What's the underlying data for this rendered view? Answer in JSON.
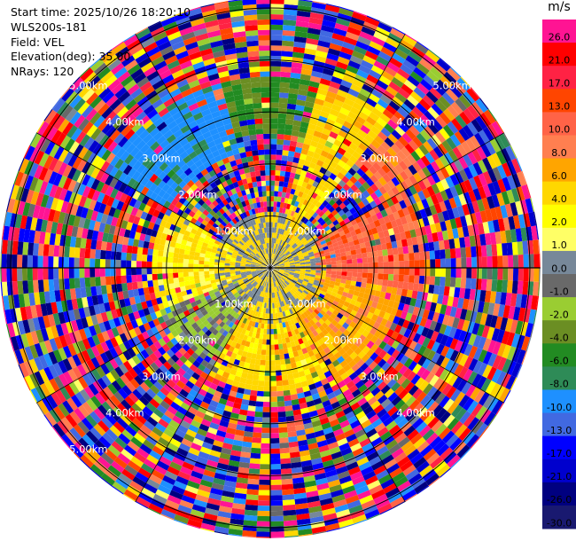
{
  "info": {
    "start_time": "Start time: 2025/10/26 18:20:10",
    "instrument": "WLS200s-181",
    "field": "Field: VEL",
    "elevation": "Elevation(deg): 35.00",
    "nrays": "NRays: 120"
  },
  "chart_data": {
    "type": "heatmap",
    "projection": "polar",
    "field": "VEL",
    "units": "m/s",
    "n_rays": 120,
    "elevation_deg": 35.0,
    "range_rings_km": [
      1.0,
      2.0,
      3.0,
      4.0,
      5.0
    ],
    "ring_labels": [
      "1.00km",
      "2.00km",
      "3.00km",
      "4.00km",
      "5.00km"
    ],
    "max_range_km": 5.2,
    "colorbar": {
      "label": "m/s",
      "ticks": [
        26.0,
        21.0,
        17.0,
        13.0,
        10.0,
        8.0,
        6.0,
        4.0,
        2.0,
        1.0,
        0.0,
        -1.0,
        -2.0,
        -4.0,
        -6.0,
        -8.0,
        -10.0,
        -13.0,
        -17.0,
        -21.0,
        -26.0,
        -30.0
      ],
      "tick_labels": [
        "26.0",
        "21.0",
        "17.0",
        "13.0",
        "10.0",
        "8.0",
        "6.0",
        "4.0",
        "2.0",
        "1.0",
        "0.0",
        "-1.0",
        "-2.0",
        "-4.0",
        "-6.0",
        "-8.0",
        "-10.0",
        "-13.0",
        "-17.0",
        "-21.0",
        "-26.0",
        "-30.0"
      ],
      "colors": [
        "#ff1493",
        "#ff0000",
        "#ff2244",
        "#ff4500",
        "#ff6347",
        "#ff7f50",
        "#ffa500",
        "#ffd700",
        "#ffff00",
        "#ffff66",
        "#778899",
        "#696969",
        "#9acd32",
        "#6b8e23",
        "#228b22",
        "#2e8b57",
        "#1e90ff",
        "#4169e1",
        "#0000ff",
        "#0000cd",
        "#000080",
        "#191970"
      ]
    },
    "regions": [
      {
        "az_start": 15,
        "az_end": 40,
        "r_start": 0.6,
        "r_end": 3.6,
        "value": 3.0
      },
      {
        "az_start": 40,
        "az_end": 60,
        "r_start": 2.5,
        "r_end": 3.4,
        "value": 7.0
      },
      {
        "az_start": 60,
        "az_end": 100,
        "r_start": 0.8,
        "r_end": 2.9,
        "value": 9.0
      },
      {
        "az_start": 100,
        "az_end": 150,
        "r_start": 0.8,
        "r_end": 2.5,
        "value": 5.0
      },
      {
        "az_start": 150,
        "az_end": 210,
        "r_start": 0.6,
        "r_end": 2.3,
        "value": 3.0
      },
      {
        "az_start": 210,
        "az_end": 250,
        "r_start": 0.6,
        "r_end": 2.2,
        "value": -2.0
      },
      {
        "az_start": 250,
        "az_end": 300,
        "r_start": 0.6,
        "r_end": 2.2,
        "value": 2.0
      },
      {
        "az_start": 300,
        "az_end": 345,
        "r_start": 2.2,
        "r_end": 3.6,
        "value": -11.0
      },
      {
        "az_start": 345,
        "az_end": 375,
        "r_start": 2.5,
        "r_end": 3.6,
        "value": -6.0
      }
    ]
  }
}
